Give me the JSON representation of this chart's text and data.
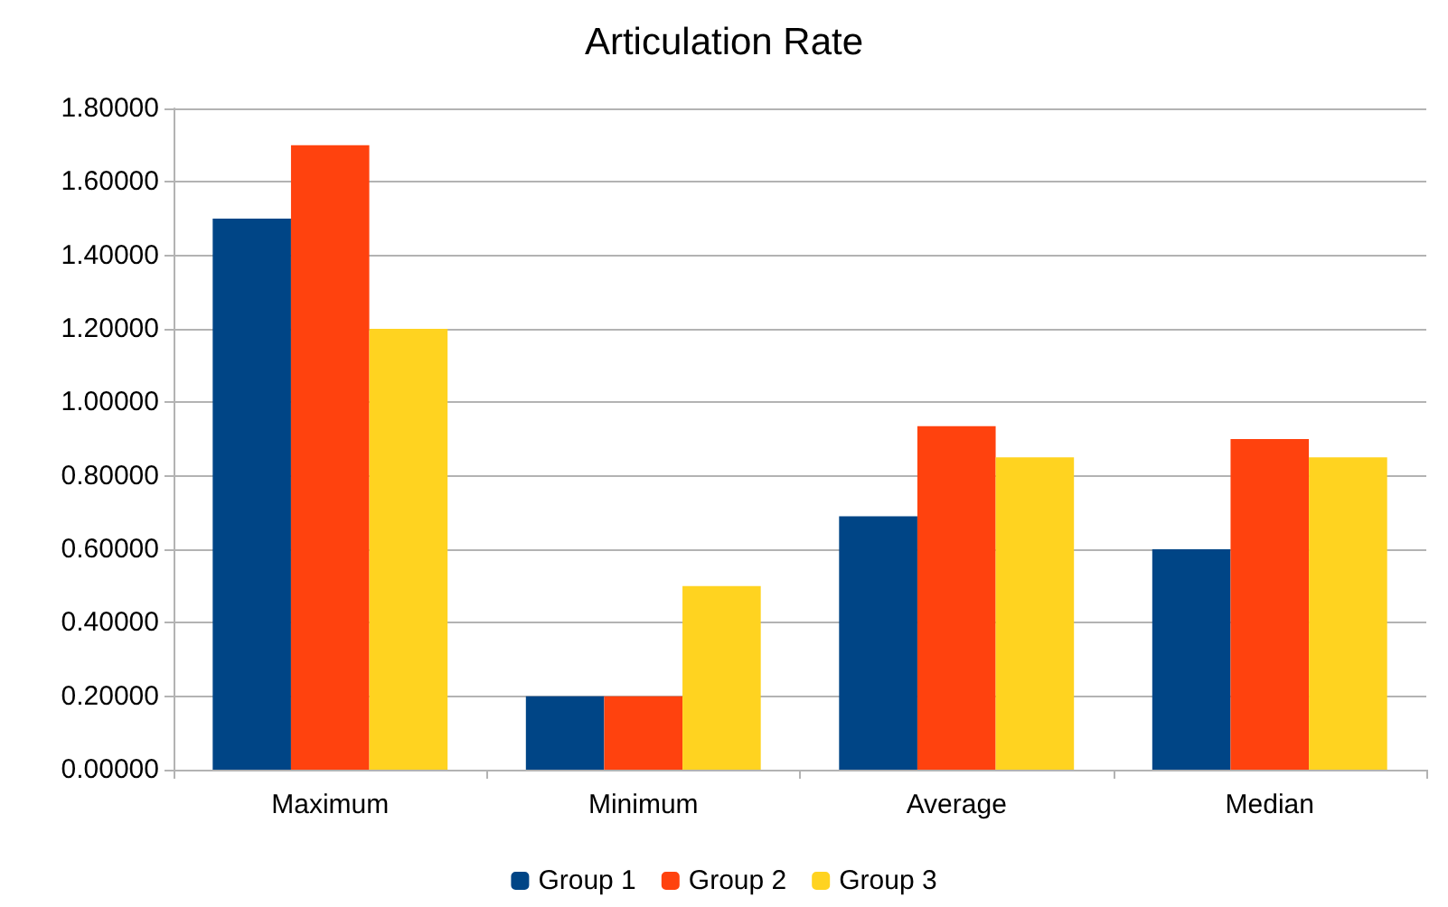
{
  "chart_data": {
    "type": "bar",
    "title": "Articulation Rate",
    "categories": [
      "Maximum",
      "Minimum",
      "Average",
      "Median"
    ],
    "series": [
      {
        "name": "Group 1",
        "color": "#004586",
        "values": [
          1.5,
          0.2,
          0.69,
          0.6
        ]
      },
      {
        "name": "Group 2",
        "color": "#ff420e",
        "values": [
          1.7,
          0.2,
          0.935,
          0.9
        ]
      },
      {
        "name": "Group 3",
        "color": "#ffd320",
        "values": [
          1.2,
          0.5,
          0.85,
          0.85
        ]
      }
    ],
    "ylim": [
      0,
      1.8
    ],
    "yticks": [
      {
        "value": 0,
        "label": "0.00000"
      },
      {
        "value": 0.2,
        "label": "0.20000"
      },
      {
        "value": 0.4,
        "label": "0.40000"
      },
      {
        "value": 0.6,
        "label": "0.60000"
      },
      {
        "value": 0.8,
        "label": "0.80000"
      },
      {
        "value": 1,
        "label": "1.00000"
      },
      {
        "value": 1.2,
        "label": "1.20000"
      },
      {
        "value": 1.4,
        "label": "1.40000"
      },
      {
        "value": 1.6,
        "label": "1.60000"
      },
      {
        "value": 1.8,
        "label": "1.80000"
      }
    ],
    "grid": "y",
    "legend": "bottom"
  }
}
